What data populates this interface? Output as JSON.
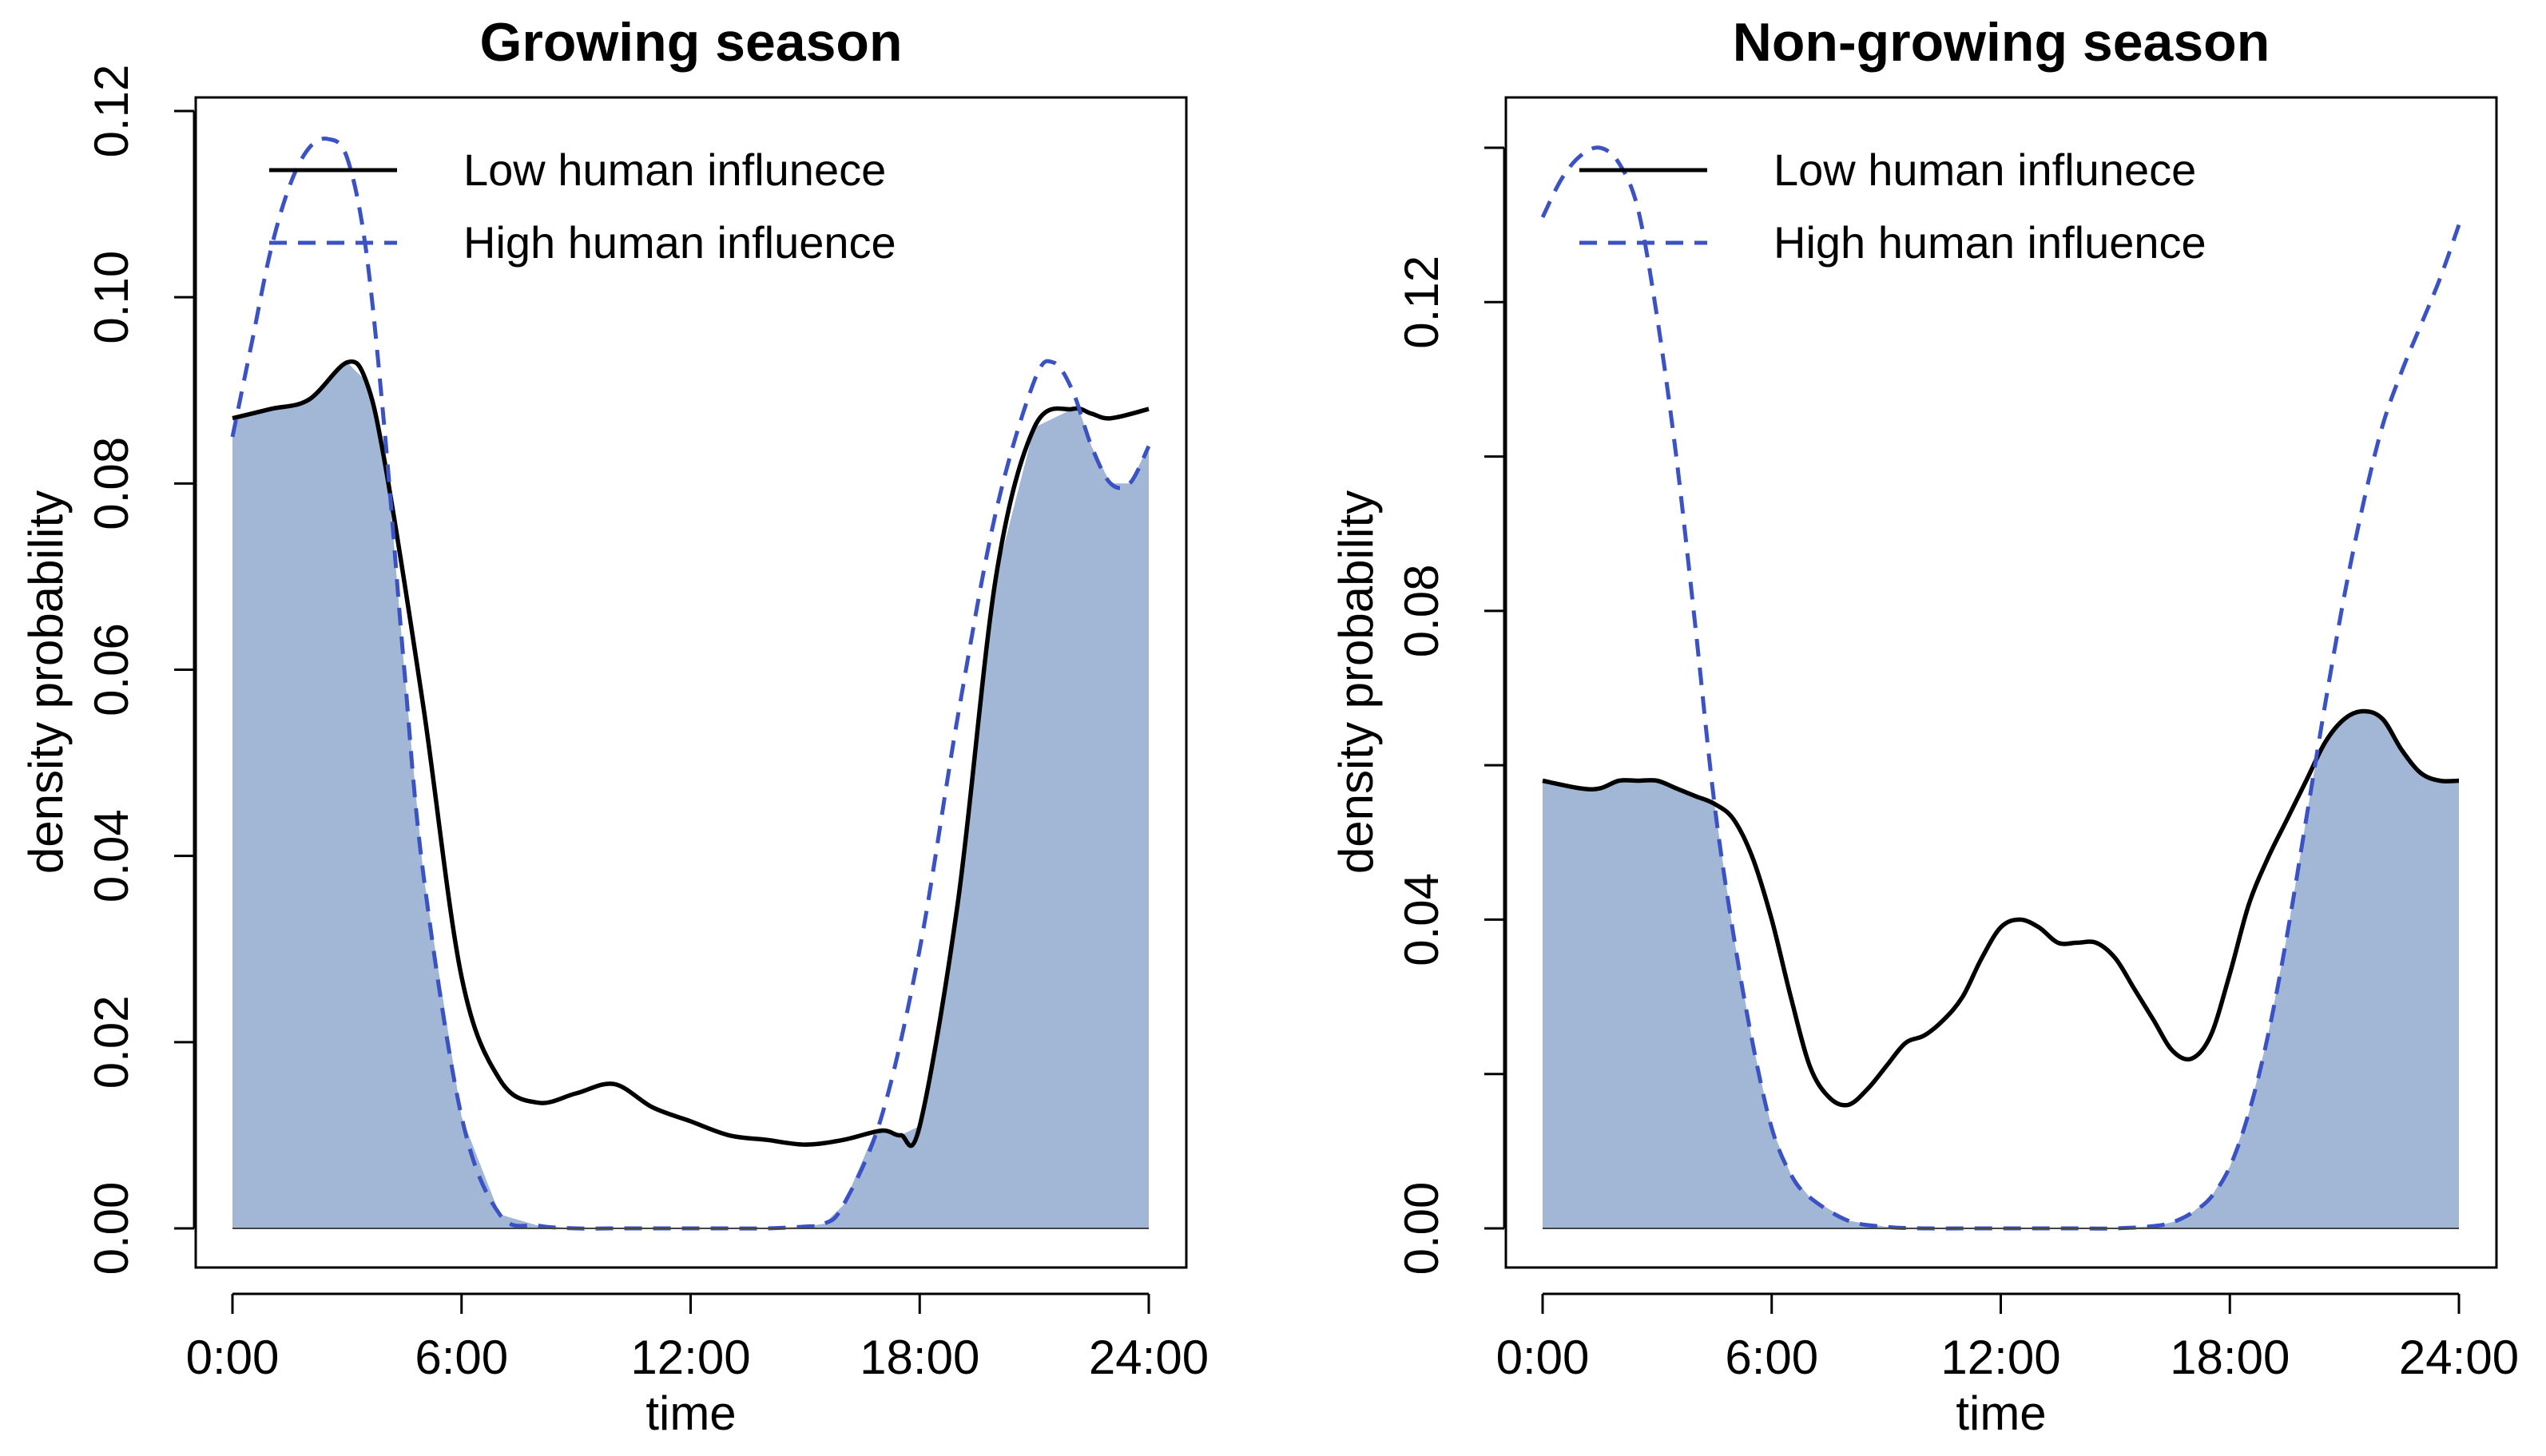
{
  "chart_data": [
    {
      "type": "line",
      "title": "Growing season",
      "xlabel": "time",
      "ylabel": "density probability",
      "xlim": [
        0,
        24
      ],
      "ylim": [
        0,
        0.12
      ],
      "x_ticks": [
        0,
        6,
        12,
        18,
        24
      ],
      "x_tick_labels": [
        "0:00",
        "6:00",
        "12:00",
        "18:00",
        "24:00"
      ],
      "y_ticks": [
        0,
        0.02,
        0.04,
        0.06,
        0.08,
        0.1,
        0.12
      ],
      "y_tick_labels": [
        "0.00",
        "0.02",
        "0.04",
        "0.06",
        "0.08",
        "0.10",
        "0.12"
      ],
      "overlap_fill_color": "#a2b6d5",
      "legend": {
        "position": "top-left"
      },
      "series": [
        {
          "name": "Low human influnece",
          "style": "solid",
          "color": "#000000",
          "x": [
            0,
            1,
            2,
            3,
            3.5,
            4,
            5,
            6,
            7,
            8,
            9,
            10,
            11,
            12,
            13,
            14,
            15,
            16,
            17,
            17.5,
            18,
            19,
            20,
            21,
            22,
            22.5,
            23,
            24
          ],
          "y": [
            0.087,
            0.088,
            0.089,
            0.093,
            0.091,
            0.082,
            0.056,
            0.027,
            0.016,
            0.0135,
            0.0145,
            0.0155,
            0.013,
            0.0115,
            0.01,
            0.0095,
            0.009,
            0.0095,
            0.0105,
            0.01,
            0.011,
            0.035,
            0.07,
            0.086,
            0.088,
            0.0875,
            0.087,
            0.088
          ]
        },
        {
          "name": "High human influence",
          "style": "dashed",
          "color": "#3a52c4",
          "x": [
            0,
            0.5,
            1,
            1.5,
            2,
            2.5,
            3,
            3.5,
            4,
            4.5,
            5,
            6,
            7,
            8,
            9,
            10,
            11,
            12,
            13,
            14,
            15,
            15.5,
            16,
            17,
            18,
            19,
            20,
            21,
            21.5,
            22,
            22.5,
            23,
            23.5,
            24
          ],
          "y": [
            0.085,
            0.095,
            0.105,
            0.112,
            0.116,
            0.117,
            0.115,
            0.105,
            0.085,
            0.06,
            0.038,
            0.012,
            0.0015,
            0.0003,
            0,
            0,
            0,
            0,
            0,
            0,
            0.0002,
            0.0005,
            0.0025,
            0.012,
            0.03,
            0.055,
            0.077,
            0.091,
            0.093,
            0.09,
            0.084,
            0.08,
            0.08,
            0.084
          ]
        }
      ]
    },
    {
      "type": "line",
      "title": "Non-growing season",
      "xlabel": "time",
      "ylabel": "density probability",
      "xlim": [
        0,
        24
      ],
      "ylim": [
        0,
        0.14
      ],
      "x_ticks": [
        0,
        6,
        12,
        18,
        24
      ],
      "x_tick_labels": [
        "0:00",
        "6:00",
        "12:00",
        "18:00",
        "24:00"
      ],
      "y_ticks": [
        0,
        0.02,
        0.04,
        0.06,
        0.08,
        0.1,
        0.12,
        0.14
      ],
      "y_tick_labels": [
        "0.00",
        "",
        "0.04",
        "",
        "0.08",
        "",
        "0.12",
        ""
      ],
      "overlap_fill_color": "#a2b6d5",
      "legend": {
        "position": "top-left"
      },
      "series": [
        {
          "name": "Low human influnece",
          "style": "solid",
          "color": "#000000",
          "x": [
            0,
            1,
            1.5,
            2,
            2.5,
            3,
            3.5,
            4,
            4.5,
            5,
            5.5,
            6,
            6.5,
            7,
            7.5,
            8,
            8.5,
            9,
            9.5,
            10,
            10.5,
            11,
            11.5,
            12,
            12.5,
            13,
            13.5,
            14,
            14.5,
            15,
            15.5,
            16,
            16.5,
            17,
            17.5,
            18,
            18.5,
            19,
            19.5,
            20,
            20.5,
            21,
            21.5,
            22,
            22.5,
            23,
            23.5,
            24
          ],
          "y": [
            0.058,
            0.057,
            0.057,
            0.058,
            0.058,
            0.058,
            0.057,
            0.056,
            0.055,
            0.053,
            0.048,
            0.04,
            0.03,
            0.021,
            0.017,
            0.016,
            0.018,
            0.021,
            0.024,
            0.025,
            0.027,
            0.03,
            0.035,
            0.039,
            0.04,
            0.039,
            0.037,
            0.037,
            0.037,
            0.035,
            0.031,
            0.027,
            0.023,
            0.022,
            0.025,
            0.033,
            0.042,
            0.048,
            0.053,
            0.058,
            0.063,
            0.066,
            0.067,
            0.066,
            0.062,
            0.059,
            0.058,
            0.058
          ]
        },
        {
          "name": "High human influence",
          "style": "dashed",
          "color": "#3a52c4",
          "x": [
            0,
            0.5,
            1,
            1.5,
            2,
            2.5,
            3,
            3.5,
            4,
            4.5,
            5,
            5.5,
            6,
            6.5,
            7,
            8,
            9,
            10,
            11,
            12,
            13,
            14,
            15,
            16,
            16.5,
            17,
            17.5,
            18,
            18.5,
            19,
            19.5,
            20,
            20.5,
            21,
            21.5,
            22,
            22.5,
            23,
            23.5,
            24
          ],
          "y": [
            0.131,
            0.136,
            0.139,
            0.14,
            0.138,
            0.132,
            0.118,
            0.1,
            0.078,
            0.055,
            0.038,
            0.024,
            0.013,
            0.007,
            0.004,
            0.001,
            0.0002,
            0,
            0,
            0,
            0,
            0,
            0,
            0.0003,
            0.0008,
            0.002,
            0.004,
            0.008,
            0.015,
            0.025,
            0.038,
            0.053,
            0.068,
            0.082,
            0.094,
            0.104,
            0.111,
            0.117,
            0.123,
            0.13
          ]
        }
      ]
    }
  ]
}
